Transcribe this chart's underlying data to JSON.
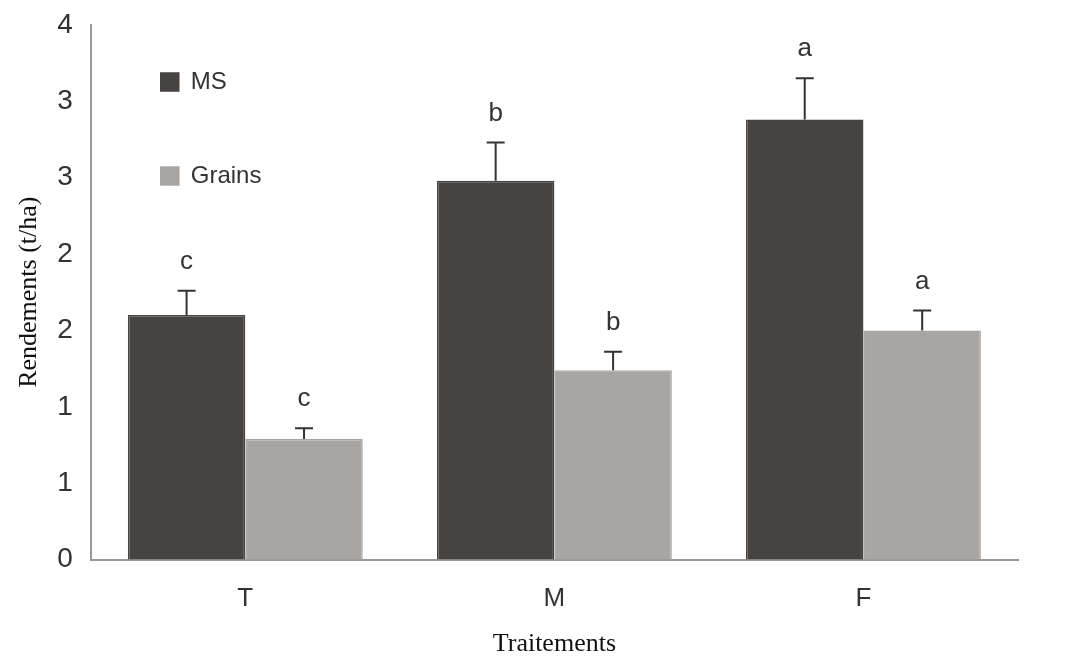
{
  "chart_data": {
    "type": "bar",
    "xlabel": "Traitements",
    "ylabel": "Rendements (t/ha)",
    "categories": [
      "T",
      "M",
      "F"
    ],
    "series": [
      {
        "name": "MS",
        "color": "#474341",
        "values": [
          1.6,
          2.48,
          2.88
        ],
        "errors": [
          0.16,
          0.25,
          0.27
        ],
        "value_labels": [
          "c",
          "b",
          "a"
        ]
      },
      {
        "name": "Grains",
        "color": "#a9a5a3",
        "values": [
          0.79,
          1.24,
          1.5
        ],
        "errors": [
          0.07,
          0.12,
          0.13
        ],
        "value_labels": [
          "c",
          "b",
          "a"
        ]
      }
    ],
    "ylim": [
      0,
      3.5
    ],
    "yticks": [
      0,
      {
        "value": 0.5,
        "label": "1"
      },
      {
        "value": 1,
        "label": "1"
      },
      {
        "value": 1.5,
        "label": "2"
      },
      {
        "value": 2,
        "label": "2"
      },
      {
        "value": 2.5,
        "label": "3"
      },
      {
        "value": 3,
        "label": "3"
      },
      {
        "value": 3.5,
        "label": "4"
      }
    ],
    "legend": "top left",
    "grid": false
  }
}
